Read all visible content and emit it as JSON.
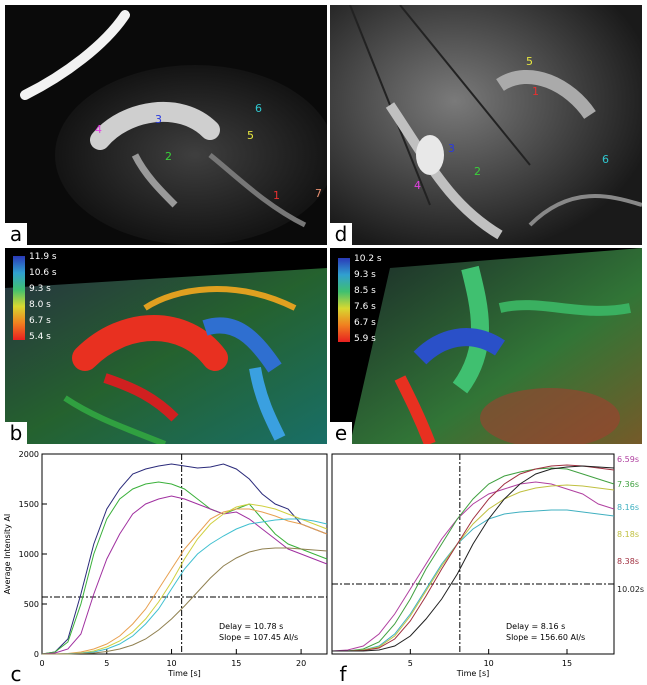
{
  "panels": {
    "a": {
      "label": "a",
      "rois": [
        "1",
        "2",
        "3",
        "4",
        "5",
        "6",
        "7"
      ],
      "roi_colors": {
        "1": "#e83030",
        "2": "#3ad03a",
        "3": "#2a3ae0",
        "4": "#e040e0",
        "5": "#e8e840",
        "6": "#30c8d0",
        "7": "#e89070"
      }
    },
    "d": {
      "label": "d",
      "rois": [
        "1",
        "2",
        "3",
        "4",
        "5",
        "6"
      ]
    },
    "b": {
      "label": "b",
      "colorbar": [
        "11.9 s",
        "10.6 s",
        "9.3 s",
        "8.0 s",
        "6.7 s",
        "5.4 s"
      ]
    },
    "e": {
      "label": "e",
      "colorbar": [
        "10.2 s",
        "9.3 s",
        "8.5 s",
        "7.6 s",
        "6.7 s",
        "5.9 s"
      ]
    },
    "c": {
      "label": "c"
    },
    "f": {
      "label": "f"
    }
  },
  "chart_data": [
    {
      "type": "line",
      "panel": "c",
      "xlabel": "Time [s]",
      "ylabel": "Average Intensity AI",
      "xlim": [
        0,
        22
      ],
      "ylim": [
        0,
        2000
      ],
      "xticks": [
        0,
        5,
        10,
        15,
        20
      ],
      "yticks": [
        0,
        500,
        1000,
        1500,
        2000
      ],
      "annotations": [
        "Delay = 10.78 s",
        "Slope = 107.45 AI/s"
      ],
      "vline": 10.78,
      "hline": 570,
      "series": [
        {
          "color": "#2a2a7a",
          "x": [
            0,
            1,
            2,
            3,
            4,
            5,
            6,
            7,
            8,
            9,
            10,
            11,
            12,
            13,
            14,
            15,
            16,
            17,
            18,
            19,
            20,
            21,
            22
          ],
          "y": [
            0,
            20,
            150,
            600,
            1100,
            1450,
            1650,
            1800,
            1850,
            1880,
            1900,
            1880,
            1860,
            1870,
            1900,
            1850,
            1750,
            1600,
            1500,
            1450,
            1300,
            1250,
            1200
          ]
        },
        {
          "color": "#3ab03a",
          "x": [
            0,
            1,
            2,
            3,
            4,
            5,
            6,
            7,
            8,
            9,
            10,
            11,
            12,
            13,
            14,
            15,
            16,
            17,
            18,
            19,
            20,
            21,
            22
          ],
          "y": [
            0,
            20,
            120,
            500,
            1000,
            1350,
            1550,
            1650,
            1700,
            1720,
            1700,
            1650,
            1550,
            1450,
            1400,
            1450,
            1500,
            1350,
            1200,
            1100,
            1050,
            1000,
            950
          ]
        },
        {
          "color": "#a030a0",
          "x": [
            0,
            1,
            2,
            3,
            4,
            5,
            6,
            7,
            8,
            9,
            10,
            11,
            12,
            13,
            14,
            15,
            16,
            17,
            18,
            19,
            20,
            21,
            22
          ],
          "y": [
            0,
            10,
            50,
            200,
            600,
            950,
            1200,
            1400,
            1500,
            1550,
            1580,
            1550,
            1500,
            1450,
            1400,
            1420,
            1350,
            1250,
            1150,
            1050,
            1000,
            950,
            900
          ]
        },
        {
          "color": "#e8a050",
          "x": [
            0,
            1,
            2,
            3,
            4,
            5,
            6,
            7,
            8,
            9,
            10,
            11,
            12,
            13,
            14,
            15,
            16,
            17,
            18,
            19,
            20,
            21,
            22
          ],
          "y": [
            0,
            0,
            5,
            20,
            50,
            100,
            180,
            300,
            450,
            650,
            850,
            1050,
            1200,
            1350,
            1420,
            1450,
            1450,
            1420,
            1380,
            1330,
            1300,
            1250,
            1200
          ]
        },
        {
          "color": "#d0d040",
          "x": [
            0,
            1,
            2,
            3,
            4,
            5,
            6,
            7,
            8,
            9,
            10,
            11,
            12,
            13,
            14,
            15,
            16,
            17,
            18,
            19,
            20,
            21,
            22
          ],
          "y": [
            0,
            0,
            3,
            10,
            30,
            70,
            130,
            220,
            350,
            520,
            720,
            950,
            1150,
            1300,
            1400,
            1470,
            1500,
            1480,
            1450,
            1400,
            1350,
            1300,
            1250
          ]
        },
        {
          "color": "#40c0d0",
          "x": [
            0,
            1,
            2,
            3,
            4,
            5,
            6,
            7,
            8,
            9,
            10,
            11,
            12,
            13,
            14,
            15,
            16,
            17,
            18,
            19,
            20,
            21,
            22
          ],
          "y": [
            0,
            0,
            3,
            8,
            20,
            50,
            100,
            180,
            300,
            450,
            650,
            850,
            1000,
            1100,
            1180,
            1250,
            1300,
            1320,
            1340,
            1350,
            1350,
            1330,
            1300
          ]
        },
        {
          "color": "#908050",
          "x": [
            0,
            1,
            2,
            3,
            4,
            5,
            6,
            7,
            8,
            9,
            10,
            11,
            12,
            13,
            14,
            15,
            16,
            17,
            18,
            19,
            20,
            21,
            22
          ],
          "y": [
            0,
            0,
            0,
            5,
            10,
            25,
            50,
            90,
            150,
            240,
            350,
            480,
            620,
            760,
            880,
            960,
            1020,
            1050,
            1060,
            1060,
            1050,
            1040,
            1030
          ]
        }
      ]
    },
    {
      "type": "line",
      "panel": "f",
      "xlabel": "Time [s]",
      "xlim": [
        0,
        18
      ],
      "ylim": [
        0,
        2000
      ],
      "xticks": [
        5,
        10,
        15
      ],
      "annotations": [
        "Delay = 8.16 s",
        "Slope = 156.60 AI/s"
      ],
      "vline": 8.16,
      "hline": 700,
      "right_labels": [
        {
          "text": "6.59s",
          "color": "#b040a0",
          "y": 1950
        },
        {
          "text": "7.36s",
          "color": "#40a040",
          "y": 1700
        },
        {
          "text": "8.16s",
          "color": "#40b0c0",
          "y": 1470
        },
        {
          "text": "8.18s",
          "color": "#c0c040",
          "y": 1200
        },
        {
          "text": "8.38s",
          "color": "#a03040",
          "y": 930
        },
        {
          "text": "10.02s",
          "color": "#202020",
          "y": 650
        }
      ],
      "series": [
        {
          "color": "#b040a0",
          "x": [
            0,
            1,
            2,
            3,
            4,
            5,
            6,
            7,
            8,
            9,
            10,
            11,
            12,
            13,
            14,
            15,
            16,
            17,
            18
          ],
          "y": [
            30,
            40,
            80,
            200,
            400,
            650,
            900,
            1150,
            1350,
            1500,
            1600,
            1650,
            1700,
            1720,
            1700,
            1650,
            1600,
            1500,
            1450
          ]
        },
        {
          "color": "#40a040",
          "x": [
            0,
            1,
            2,
            3,
            4,
            5,
            6,
            7,
            8,
            9,
            10,
            11,
            12,
            13,
            14,
            15,
            16,
            17,
            18
          ],
          "y": [
            30,
            30,
            50,
            120,
            300,
            550,
            850,
            1100,
            1350,
            1550,
            1700,
            1780,
            1820,
            1850,
            1860,
            1850,
            1800,
            1750,
            1700
          ]
        },
        {
          "color": "#40b0c0",
          "x": [
            0,
            1,
            2,
            3,
            4,
            5,
            6,
            7,
            8,
            9,
            10,
            11,
            12,
            13,
            14,
            15,
            16,
            17,
            18
          ],
          "y": [
            30,
            30,
            40,
            80,
            200,
            400,
            650,
            900,
            1100,
            1250,
            1350,
            1400,
            1420,
            1430,
            1440,
            1440,
            1420,
            1400,
            1380
          ]
        },
        {
          "color": "#c0c040",
          "x": [
            0,
            1,
            2,
            3,
            4,
            5,
            6,
            7,
            8,
            9,
            10,
            11,
            12,
            13,
            14,
            15,
            16,
            17,
            18
          ],
          "y": [
            30,
            30,
            40,
            70,
            180,
            380,
            630,
            880,
            1100,
            1300,
            1450,
            1550,
            1620,
            1660,
            1680,
            1690,
            1680,
            1660,
            1640
          ]
        },
        {
          "color": "#a03040",
          "x": [
            0,
            1,
            2,
            3,
            4,
            5,
            6,
            7,
            8,
            9,
            10,
            11,
            12,
            13,
            14,
            15,
            16,
            17,
            18
          ],
          "y": [
            30,
            30,
            35,
            60,
            150,
            330,
            580,
            850,
            1100,
            1350,
            1550,
            1700,
            1800,
            1850,
            1880,
            1890,
            1880,
            1860,
            1840
          ]
        },
        {
          "color": "#202020",
          "x": [
            0,
            1,
            2,
            3,
            4,
            5,
            6,
            7,
            8,
            9,
            10,
            11,
            12,
            13,
            14,
            15,
            16,
            17,
            18
          ],
          "y": [
            30,
            30,
            30,
            40,
            80,
            180,
            350,
            550,
            800,
            1100,
            1350,
            1550,
            1700,
            1800,
            1850,
            1870,
            1880,
            1870,
            1860
          ]
        }
      ]
    }
  ]
}
